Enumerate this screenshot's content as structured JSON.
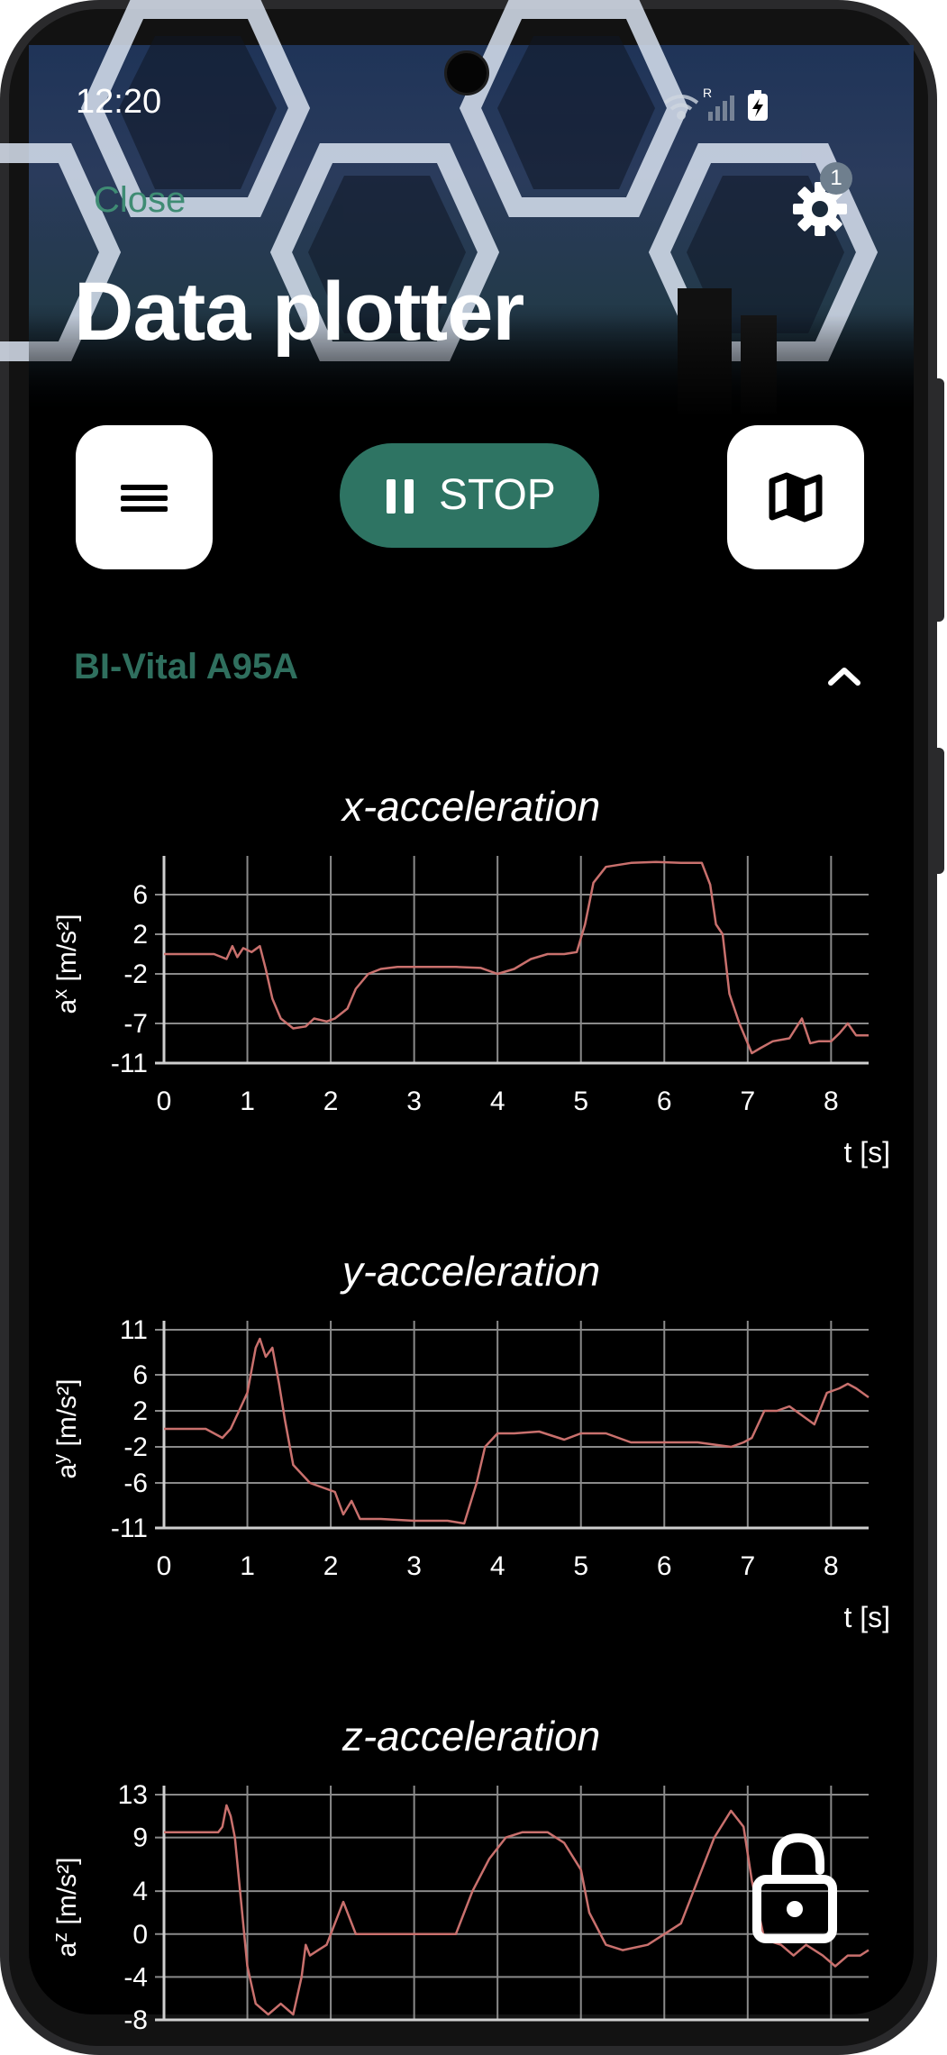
{
  "status_bar": {
    "time": "12:20",
    "signal_label": "R"
  },
  "header": {
    "close_label": "Close",
    "settings_badge": "1",
    "title": "Data plotter"
  },
  "toolbar": {
    "menu_icon": "hamburger-icon",
    "stop_icon": "pause-icon",
    "stop_label": "STOP",
    "map_icon": "map-icon"
  },
  "device": {
    "name": "BI-Vital A95A",
    "collapse_icon": "chevron-up-icon"
  },
  "colors": {
    "accent_green": "#2e7463",
    "device_name_green": "#2f6f5e",
    "close_green": "#3f8c74",
    "trace": "#c9706d",
    "grid": "#8a8a8a"
  },
  "lock_icon": "unlock-icon",
  "charts": [
    {
      "key": "x",
      "title": "x-acceleration",
      "ylabel_base": "a",
      "ylabel_sup": "x",
      "ylabel_unit": " [m/s²]",
      "xlabel": "t [s]",
      "yticks": [
        "6",
        "2",
        "-2",
        "-7",
        "-11"
      ],
      "xticks": [
        "0",
        "1",
        "2",
        "3",
        "4",
        "5",
        "6",
        "7",
        "8"
      ]
    },
    {
      "key": "y",
      "title": "y-acceleration",
      "ylabel_base": "a",
      "ylabel_sup": "y",
      "ylabel_unit": " [m/s²]",
      "xlabel": "t [s]",
      "yticks": [
        "11",
        "6",
        "2",
        "-2",
        "-6",
        "-11"
      ],
      "xticks": [
        "0",
        "1",
        "2",
        "3",
        "4",
        "5",
        "6",
        "7",
        "8"
      ]
    },
    {
      "key": "z",
      "title": "z-acceleration",
      "ylabel_base": "a",
      "ylabel_sup": "z",
      "ylabel_unit": " [m/s²]",
      "xlabel": "",
      "yticks": [
        "13",
        "9",
        "4",
        "0",
        "-4",
        "-8"
      ],
      "xticks": []
    }
  ],
  "chart_data": [
    {
      "type": "line",
      "title": "x-acceleration",
      "xlabel": "t [s]",
      "ylabel": "aˣ [m/s²]",
      "xlim": [
        0,
        8.45
      ],
      "ylim": [
        -11,
        9
      ],
      "grid": true,
      "series": [
        {
          "x": [
            0,
            0.3,
            0.6,
            0.75,
            0.82,
            0.88,
            0.95,
            1.05,
            1.15,
            1.22,
            1.3,
            1.4,
            1.55,
            1.7,
            1.8,
            1.95,
            2.05,
            2.2,
            2.3,
            2.45,
            2.6,
            2.8,
            3.0,
            3.2,
            3.5,
            3.8,
            4.0,
            4.2,
            4.4,
            4.6,
            4.8,
            4.95,
            5.05,
            5.15,
            5.3,
            5.6,
            5.9,
            6.2,
            6.45,
            6.55,
            6.62,
            6.7,
            6.78,
            6.9,
            7.05,
            7.15,
            7.3,
            7.5,
            7.65,
            7.75,
            7.85,
            8.0,
            8.1,
            8.2,
            8.3,
            8.45
          ],
          "y": [
            0,
            0,
            0,
            -0.5,
            0.8,
            -0.3,
            0.6,
            0.2,
            0.8,
            -1.5,
            -4.5,
            -6.5,
            -7.5,
            -7.3,
            -6.5,
            -6.8,
            -6.5,
            -5.5,
            -3.5,
            -2,
            -1.5,
            -1.3,
            -1.3,
            -1.3,
            -1.3,
            -1.4,
            -2,
            -1.5,
            -0.5,
            0,
            0,
            0.2,
            3,
            7.2,
            8.8,
            9.2,
            9.3,
            9.2,
            9.2,
            7,
            3,
            2,
            -4,
            -7,
            -10,
            -9.5,
            -8.8,
            -8.5,
            -6.5,
            -9,
            -8.8,
            -8.8,
            -8,
            -7,
            -8.2,
            -8.2
          ]
        }
      ]
    },
    {
      "type": "line",
      "title": "y-acceleration",
      "xlabel": "t [s]",
      "ylabel": "aʸ [m/s²]",
      "xlim": [
        0,
        8.45
      ],
      "ylim": [
        -11,
        11
      ],
      "grid": true,
      "series": [
        {
          "x": [
            0,
            0.5,
            0.7,
            0.8,
            0.9,
            1.0,
            1.1,
            1.15,
            1.22,
            1.3,
            1.38,
            1.45,
            1.55,
            1.65,
            1.75,
            1.9,
            2.05,
            2.15,
            2.25,
            2.35,
            2.6,
            3.0,
            3.4,
            3.6,
            3.75,
            3.85,
            4.0,
            4.2,
            4.5,
            4.8,
            5.0,
            5.3,
            5.6,
            6.0,
            6.4,
            6.8,
            6.95,
            7.05,
            7.2,
            7.35,
            7.5,
            7.65,
            7.8,
            7.95,
            8.1,
            8.2,
            8.3,
            8.45
          ],
          "y": [
            0,
            0,
            -1,
            0,
            2,
            4,
            9,
            10,
            8,
            9,
            5,
            1,
            -4,
            -5,
            -6,
            -6.5,
            -7,
            -9.5,
            -8,
            -10,
            -10,
            -10.2,
            -10.2,
            -10.5,
            -6,
            -2,
            -0.5,
            -0.5,
            -0.3,
            -1.2,
            -0.5,
            -0.5,
            -1.5,
            -1.5,
            -1.5,
            -2,
            -1.5,
            -1,
            2,
            2,
            2.5,
            1.5,
            0.5,
            4,
            4.5,
            5,
            4.5,
            3.5
          ]
        }
      ]
    },
    {
      "type": "line",
      "title": "z-acceleration",
      "xlabel": "",
      "ylabel": "aᶻ [m/s²]",
      "xlim": [
        0,
        8.45
      ],
      "ylim": [
        -8,
        13
      ],
      "grid": true,
      "series": [
        {
          "x": [
            0,
            0.4,
            0.65,
            0.7,
            0.75,
            0.8,
            0.85,
            0.9,
            1.0,
            1.1,
            1.25,
            1.4,
            1.55,
            1.65,
            1.7,
            1.75,
            1.85,
            1.95,
            2.05,
            2.15,
            2.3,
            2.5,
            2.8,
            3.2,
            3.5,
            3.7,
            3.9,
            4.1,
            4.3,
            4.6,
            4.8,
            5.0,
            5.1,
            5.3,
            5.5,
            5.8,
            6.0,
            6.2,
            6.4,
            6.6,
            6.8,
            6.95,
            7.05,
            7.2,
            7.4,
            7.55,
            7.7,
            7.9,
            8.05,
            8.2,
            8.35,
            8.45
          ],
          "y": [
            9.5,
            9.5,
            9.5,
            10,
            12,
            11,
            9,
            5,
            -3,
            -6.5,
            -7.5,
            -6.5,
            -7.5,
            -4,
            -1,
            -2,
            -1.5,
            -1,
            1,
            3,
            0,
            0,
            0,
            0,
            0,
            4,
            7,
            9,
            9.5,
            9.5,
            8.5,
            6,
            2,
            -1,
            -1.5,
            -1,
            0,
            1,
            5,
            9,
            11.5,
            10,
            5,
            -0.5,
            -1,
            -2,
            -1,
            -2,
            -3,
            -2,
            -2,
            -1.5
          ]
        }
      ]
    }
  ]
}
